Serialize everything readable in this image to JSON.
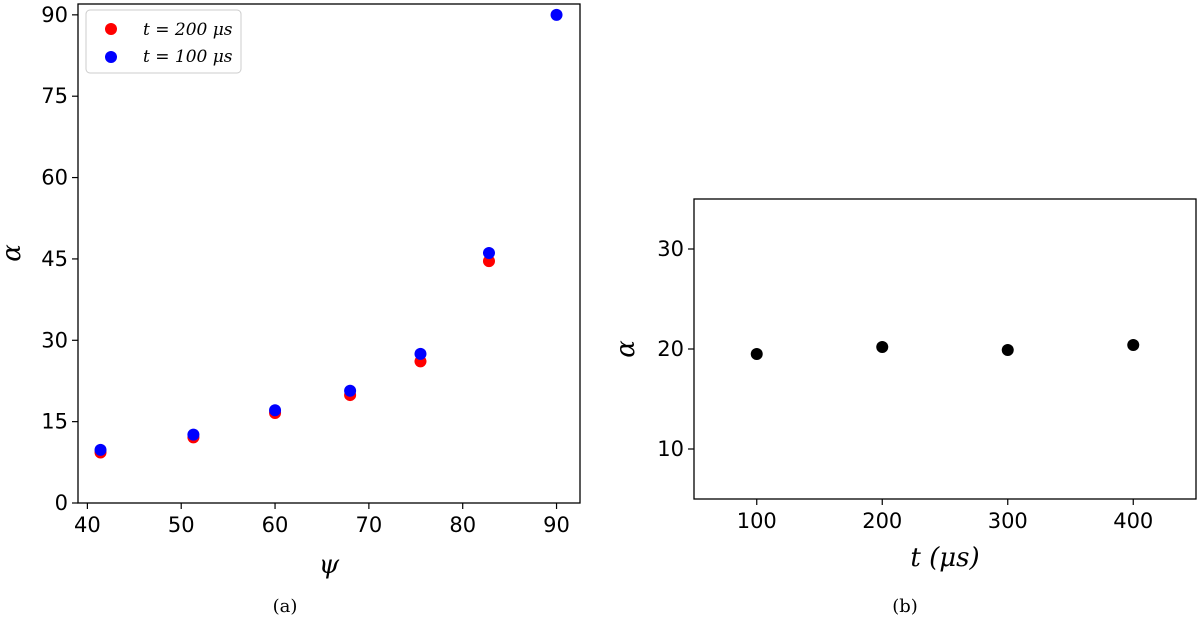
{
  "chart_data": [
    {
      "type": "scatter",
      "panel_label": "(a)",
      "xlabel": "ψ",
      "ylabel": "α",
      "xlim": [
        39,
        92.5
      ],
      "ylim": [
        0,
        92
      ],
      "xticks": [
        40,
        50,
        60,
        70,
        80,
        90
      ],
      "yticks": [
        0,
        15,
        30,
        45,
        60,
        75,
        90
      ],
      "legend_position": "top-left",
      "grid": false,
      "series": [
        {
          "name": "t = 200 μs",
          "color": "#ff0000",
          "x": [
            41.4,
            51.3,
            60.0,
            68.0,
            75.5,
            82.8
          ],
          "y": [
            9.3,
            12.1,
            16.6,
            19.9,
            26.1,
            44.6
          ]
        },
        {
          "name": "t = 100 μs",
          "color": "#0000ff",
          "x": [
            41.4,
            51.3,
            60.0,
            68.0,
            75.5,
            82.8,
            90.0
          ],
          "y": [
            9.8,
            12.6,
            17.1,
            20.7,
            27.5,
            46.1,
            90.0
          ]
        }
      ]
    },
    {
      "type": "scatter",
      "panel_label": "(b)",
      "xlabel": "t (μs)",
      "ylabel": "α",
      "xlim": [
        50,
        450
      ],
      "ylim": [
        5,
        35
      ],
      "xticks": [
        100,
        200,
        300,
        400
      ],
      "yticks": [
        10,
        20,
        30
      ],
      "grid": false,
      "series": [
        {
          "color": "#000000",
          "x": [
            100,
            200,
            300,
            400
          ],
          "y": [
            19.5,
            20.2,
            19.9,
            20.4
          ]
        }
      ]
    }
  ]
}
